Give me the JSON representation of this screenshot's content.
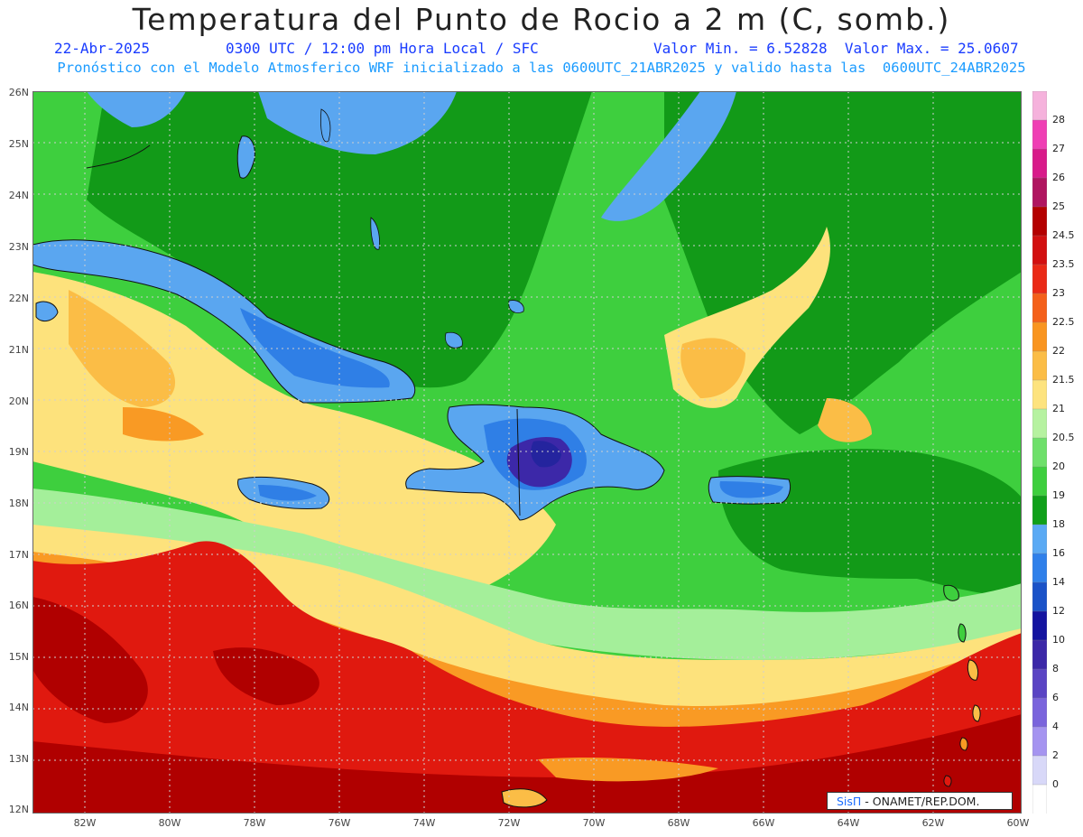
{
  "header": {
    "title": "Temperatura del Punto de Rocio a 2 m (C, somb.)",
    "date": "22-Abr-2025",
    "time_info": "0300 UTC / 12:00 pm Hora Local / SFC",
    "min_max": "Valor Min. = 6.52828  Valor Max. = 25.0607",
    "model_info": "Pronóstico con el Modelo Atmosferico WRF inicializado a las 0600UTC_21ABR2025 y valido hasta las  0600UTC_24ABR2025"
  },
  "axes": {
    "lat_labels": [
      "26N",
      "25N",
      "24N",
      "23N",
      "22N",
      "21N",
      "20N",
      "19N",
      "18N",
      "17N",
      "16N",
      "15N",
      "14N",
      "13N",
      "12N"
    ],
    "lon_labels": [
      "82W",
      "80W",
      "78W",
      "76W",
      "74W",
      "72W",
      "70W",
      "68W",
      "66W",
      "64W",
      "62W",
      "60W"
    ]
  },
  "legend": {
    "labels": [
      "28",
      "27",
      "26",
      "25",
      "24.5",
      "23.5",
      "23",
      "22.5",
      "22",
      "21.5",
      "21",
      "20.5",
      "20",
      "19",
      "18",
      "16",
      "14",
      "12",
      "10",
      "8",
      "6",
      "4",
      "2",
      "0"
    ],
    "colors": [
      "#f5b2dc",
      "#ef3fb4",
      "#d81b8a",
      "#b01560",
      "#b40000",
      "#d21010",
      "#ea2a16",
      "#f4601a",
      "#f99520",
      "#fbbd46",
      "#fde37e",
      "#b6f2a0",
      "#6ee06a",
      "#3ecf3e",
      "#10a01a",
      "#5aaaf4",
      "#2f80ea",
      "#1a52c8",
      "#1414a0",
      "#3c28a8",
      "#5a44c4",
      "#7a64dc",
      "#a594f0",
      "#d8d8f8",
      "#ffffff"
    ]
  },
  "credit": {
    "brand": "SisΠ",
    "text": " - ONAMET/REP.DOM."
  },
  "palette": {
    "ocean_green": "#3ccf3c",
    "deep_green": "#129a18",
    "light_green": "#a4ef9a",
    "land_blue": "#5aa6f0",
    "blue": "#2f7fe6",
    "dark_blue": "#24249e",
    "yellow": "#fde27c",
    "orange": "#f99a24",
    "red": "#e0190f",
    "dark_red": "#b00000"
  }
}
